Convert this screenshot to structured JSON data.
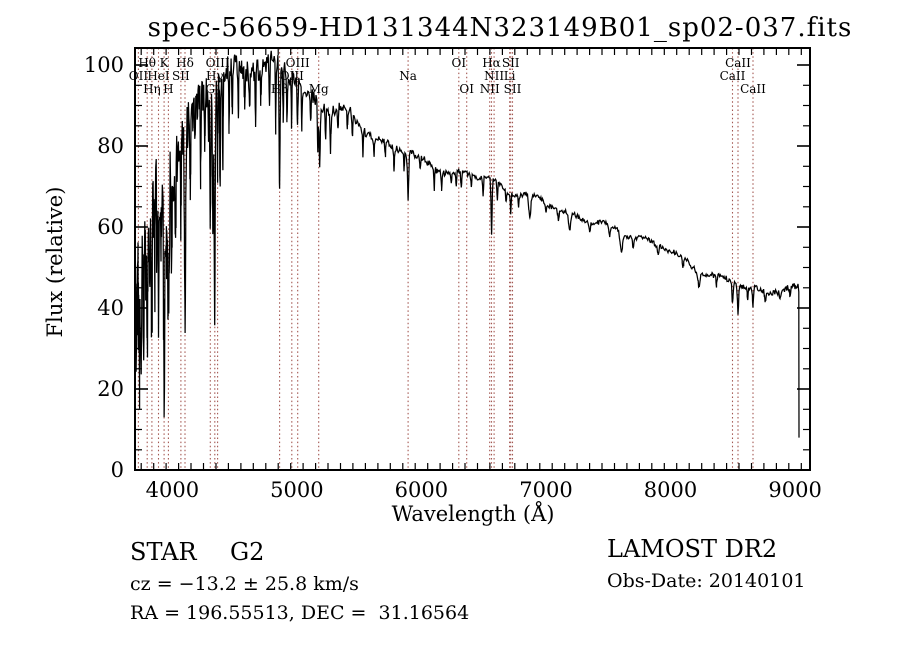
{
  "title": "spec-56659-HD131344N323149B01_sp02-037.fits",
  "colors": {
    "background": "#ffffff",
    "spectrum": "#000000",
    "line_marker": "#9a453f",
    "text": "#000000"
  },
  "footer": {
    "class_label": "STAR",
    "subclass_label": "G2",
    "cz_line": "cz = −13.2 ± 25.8 km/s",
    "radec_line": "RA = 196.55513, DEC =  31.16564",
    "survey": "LAMOST DR2",
    "obsdate_line": "Obs-Date: 20140101"
  },
  "chart_data": {
    "type": "line",
    "title": "spec-56659-HD131344N323149B01_sp02-037.fits",
    "xlabel": "Wavelength (Å)",
    "ylabel": "Flux (relative)",
    "xlim": [
      3700,
      9120
    ],
    "ylim": [
      0,
      104.5
    ],
    "x_ticks": [
      4000,
      5000,
      6000,
      7000,
      8000,
      9000
    ],
    "x_minor_step": 100,
    "y_ticks": [
      0,
      20,
      40,
      60,
      80,
      100
    ],
    "y_minor_step": 5,
    "grid": false,
    "legend": "none",
    "line_markers": [
      {
        "label": "OII",
        "wavelength": 3727.0,
        "row": 2
      },
      {
        "label": "Hθ",
        "wavelength": 3798.0,
        "row": 1
      },
      {
        "label": "Hη",
        "wavelength": 3835.4,
        "row": 3
      },
      {
        "label": "HeI",
        "wavelength": 3889.0,
        "row": 2
      },
      {
        "label": "K",
        "wavelength": 3933.7,
        "row": 1
      },
      {
        "label": "H",
        "wavelength": 3968.5,
        "row": 3
      },
      {
        "label": "SII",
        "wavelength": 4068.6,
        "row": 2
      },
      {
        "label": "Hδ",
        "wavelength": 4101.7,
        "row": 1
      },
      {
        "label": "G",
        "wavelength": 4305.0,
        "row": 3
      },
      {
        "label": "Hγ",
        "wavelength": 4340.5,
        "row": 2
      },
      {
        "label": "OIII",
        "wavelength": 4363.2,
        "row": 1
      },
      {
        "label": "Hβ",
        "wavelength": 4861.3,
        "row": 3
      },
      {
        "label": "OIII",
        "wavelength": 4959.0,
        "row": 2
      },
      {
        "label": "OIII",
        "wavelength": 5006.8,
        "row": 1
      },
      {
        "label": "Mg",
        "wavelength": 5175.3,
        "row": 3
      },
      {
        "label": "Na",
        "wavelength": 5893.0,
        "row": 2
      },
      {
        "label": "OI",
        "wavelength": 6300.3,
        "row": 1
      },
      {
        "label": "OI",
        "wavelength": 6363.8,
        "row": 3
      },
      {
        "label": "NII",
        "wavelength": 6548.0,
        "row": 3
      },
      {
        "label": "Hα",
        "wavelength": 6562.8,
        "row": 1
      },
      {
        "label": "NII",
        "wavelength": 6583.4,
        "row": 2
      },
      {
        "label": "Li",
        "wavelength": 6707.8,
        "row": 2
      },
      {
        "label": "SII",
        "wavelength": 6716.4,
        "row": 1
      },
      {
        "label": "SII",
        "wavelength": 6730.8,
        "row": 3
      },
      {
        "label": "CaII",
        "wavelength": 8498.0,
        "row": 2
      },
      {
        "label": "CaII",
        "wavelength": 8542.1,
        "row": 1
      },
      {
        "label": "CaII",
        "wavelength": 8662.1,
        "row": 3
      }
    ],
    "continuum": [
      [
        3700,
        55
      ],
      [
        3760,
        58
      ],
      [
        3830,
        62
      ],
      [
        3900,
        66
      ],
      [
        3945,
        64
      ],
      [
        3990,
        69
      ],
      [
        4040,
        78
      ],
      [
        4090,
        84
      ],
      [
        4150,
        88
      ],
      [
        4250,
        93
      ],
      [
        4350,
        96
      ],
      [
        4450,
        99
      ],
      [
        4550,
        101
      ],
      [
        4650,
        102
      ],
      [
        4720,
        101.5
      ],
      [
        4800,
        100.5
      ],
      [
        4870,
        99
      ],
      [
        4950,
        96.5
      ],
      [
        5050,
        93.5
      ],
      [
        5150,
        91
      ],
      [
        5250,
        89
      ],
      [
        5350,
        87.5
      ],
      [
        5450,
        86
      ],
      [
        5550,
        84
      ],
      [
        5650,
        82.5
      ],
      [
        5750,
        81
      ],
      [
        5850,
        79.5
      ],
      [
        5950,
        77.5
      ],
      [
        6050,
        76
      ],
      [
        6150,
        75
      ],
      [
        6250,
        73.5
      ],
      [
        6350,
        72.5
      ],
      [
        6450,
        71.5
      ],
      [
        6550,
        71
      ],
      [
        6650,
        69.5
      ],
      [
        6750,
        68.5
      ],
      [
        6850,
        67.5
      ],
      [
        6950,
        66.5
      ],
      [
        7050,
        65.5
      ],
      [
        7150,
        64.5
      ],
      [
        7250,
        63.5
      ],
      [
        7350,
        62
      ],
      [
        7450,
        60.5
      ],
      [
        7550,
        59.5
      ],
      [
        7650,
        58.5
      ],
      [
        7750,
        57
      ],
      [
        7850,
        55.5
      ],
      [
        7950,
        54
      ],
      [
        8050,
        52.5
      ],
      [
        8150,
        51
      ],
      [
        8250,
        49.5
      ],
      [
        8350,
        48
      ],
      [
        8450,
        47
      ],
      [
        8550,
        46
      ],
      [
        8650,
        45.5
      ],
      [
        8750,
        45
      ],
      [
        8850,
        44.5
      ],
      [
        8950,
        44
      ],
      [
        9035,
        44
      ]
    ],
    "noise_fast": [
      [
        3700,
        11
      ],
      [
        3960,
        11
      ],
      [
        4050,
        6
      ],
      [
        4300,
        4
      ],
      [
        4600,
        3
      ],
      [
        5000,
        2
      ],
      [
        5400,
        1.3
      ],
      [
        6000,
        0.8
      ],
      [
        6600,
        0.6
      ],
      [
        7500,
        0.55
      ],
      [
        8300,
        0.7
      ],
      [
        9040,
        0.8
      ]
    ],
    "noise_slow": [
      [
        3700,
        5
      ],
      [
        4000,
        3.5
      ],
      [
        4600,
        2.5
      ],
      [
        5200,
        1.8
      ],
      [
        6000,
        1.2
      ],
      [
        7000,
        1
      ],
      [
        9040,
        1
      ]
    ],
    "absorption_features": [
      [
        3712,
        27,
        4
      ],
      [
        3727,
        14,
        3
      ],
      [
        3737,
        30,
        4
      ],
      [
        3750,
        32,
        4
      ],
      [
        3770,
        26,
        4
      ],
      [
        3785,
        15,
        3
      ],
      [
        3798,
        29,
        4
      ],
      [
        3820,
        18,
        3
      ],
      [
        3835,
        34,
        4
      ],
      [
        3860,
        20,
        4
      ],
      [
        3875,
        15,
        3
      ],
      [
        3889,
        31,
        4
      ],
      [
        3910,
        17,
        3
      ],
      [
        3934,
        47,
        5
      ],
      [
        3952,
        19,
        3
      ],
      [
        3969,
        35,
        5
      ],
      [
        3995,
        21,
        3
      ],
      [
        4026,
        18,
        3
      ],
      [
        4068,
        18,
        3
      ],
      [
        4102,
        44,
        5
      ],
      [
        4144,
        17,
        3
      ],
      [
        4180,
        12,
        3
      ],
      [
        4227,
        21,
        3
      ],
      [
        4260,
        16,
        3
      ],
      [
        4290,
        14,
        3
      ],
      [
        4305,
        32,
        4
      ],
      [
        4326,
        36,
        4
      ],
      [
        4340,
        56,
        4
      ],
      [
        4363,
        22,
        3
      ],
      [
        4383,
        28,
        3
      ],
      [
        4405,
        20,
        3
      ],
      [
        4455,
        14,
        3
      ],
      [
        4482,
        12,
        3
      ],
      [
        4530,
        12,
        3
      ],
      [
        4580,
        10,
        3
      ],
      [
        4620,
        10,
        3
      ],
      [
        4668,
        12,
        3
      ],
      [
        4710,
        9,
        3
      ],
      [
        4780,
        10,
        3
      ],
      [
        4830,
        17,
        3
      ],
      [
        4861,
        32,
        4
      ],
      [
        4890,
        12,
        3
      ],
      [
        4920,
        13,
        3
      ],
      [
        4957,
        11,
        3
      ],
      [
        5005,
        9,
        3
      ],
      [
        5040,
        10,
        3
      ],
      [
        5110,
        8,
        3
      ],
      [
        5168,
        11,
        3
      ],
      [
        5183,
        16,
        4
      ],
      [
        5230,
        7,
        3
      ],
      [
        5270,
        10,
        3
      ],
      [
        5330,
        6,
        3
      ],
      [
        5405,
        5,
        3
      ],
      [
        5446,
        6,
        3
      ],
      [
        5530,
        6,
        3
      ],
      [
        5620,
        4,
        3
      ],
      [
        5710,
        4,
        3
      ],
      [
        5780,
        5,
        3
      ],
      [
        5860,
        4,
        3
      ],
      [
        5893,
        11,
        5
      ],
      [
        5990,
        3,
        3
      ],
      [
        6103,
        5,
        3
      ],
      [
        6162,
        4,
        3
      ],
      [
        6240,
        3,
        3
      ],
      [
        6280,
        4,
        3
      ],
      [
        6320,
        4,
        4
      ],
      [
        6400,
        3,
        3
      ],
      [
        6495,
        4,
        3
      ],
      [
        6563,
        14,
        4
      ],
      [
        6610,
        4,
        3
      ],
      [
        6680,
        3,
        3
      ],
      [
        6717,
        5,
        3
      ],
      [
        6780,
        3,
        3
      ],
      [
        6870,
        6,
        8
      ],
      [
        7000,
        2.5,
        5
      ],
      [
        7100,
        2.5,
        5
      ],
      [
        7190,
        4.5,
        8
      ],
      [
        7350,
        2.5,
        6
      ],
      [
        7510,
        3,
        6
      ],
      [
        7605,
        4.5,
        10
      ],
      [
        7700,
        2.5,
        6
      ],
      [
        7900,
        2.5,
        6
      ],
      [
        8100,
        2.5,
        6
      ],
      [
        8230,
        3.5,
        8
      ],
      [
        8370,
        2.5,
        5
      ],
      [
        8498,
        5.5,
        4
      ],
      [
        8542,
        7,
        4
      ],
      [
        8620,
        2.5,
        4
      ],
      [
        8662,
        4.5,
        4
      ],
      [
        8760,
        2.5,
        5
      ],
      [
        8880,
        2,
        5
      ],
      [
        8960,
        2,
        5
      ]
    ],
    "edge_artifacts": {
      "start": {
        "wavelength": 3700,
        "flux": 2
      },
      "end_drop": {
        "wavelength": 9031,
        "from": 44,
        "to": 8
      }
    }
  }
}
